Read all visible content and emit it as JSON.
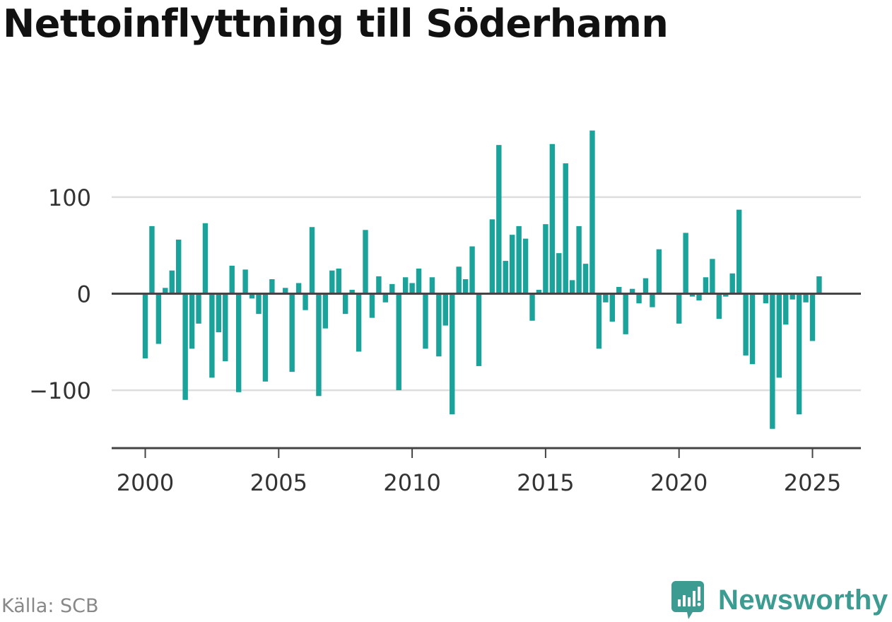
{
  "title": "Nettoinflyttning till Söderhamn",
  "source": "Källa: SCB",
  "brand": "Newsworthy",
  "colors": {
    "bar": "#1aa39a",
    "grid": "#dddddd",
    "axis": "#444444",
    "text": "#333333",
    "brand": "#3d9c91"
  },
  "chart_data": {
    "type": "bar",
    "title": "Nettoinflyttning till Söderhamn",
    "xlabel": "",
    "ylabel": "",
    "x_ticks": [
      "2000",
      "2005",
      "2010",
      "2015",
      "2020",
      "2025"
    ],
    "y_ticks": [
      100,
      0,
      -100
    ],
    "y_tick_labels": [
      "100",
      "0",
      "−100"
    ],
    "ylim": [
      -160,
      175
    ],
    "grid": true,
    "series": [
      {
        "values": [
          -67,
          70,
          -52,
          6,
          24,
          56,
          -110,
          -57,
          -31,
          73,
          -87,
          -40,
          -70,
          29,
          -102,
          25,
          -5,
          -21,
          -91,
          15,
          1,
          6,
          -81,
          11,
          -17,
          69,
          -106,
          -36,
          24,
          26,
          -21,
          4,
          -60,
          66,
          -25,
          18,
          -9,
          10,
          -100,
          17,
          11,
          26,
          -57,
          17,
          -65,
          -33,
          -125,
          28,
          15,
          49,
          -75,
          1,
          77,
          154,
          34,
          61,
          70,
          57,
          -28,
          4,
          72,
          155,
          42,
          135,
          14,
          70,
          31,
          169,
          -57,
          -9,
          -29,
          7,
          -42,
          5,
          -10,
          16,
          -14,
          46,
          -1,
          1,
          -31,
          63,
          -3,
          -7,
          17,
          36,
          -26,
          -3,
          21,
          87,
          -64,
          -73,
          1,
          -10,
          -140,
          -87,
          -32,
          -6,
          -125,
          -9,
          -49,
          18
        ]
      }
    ]
  }
}
